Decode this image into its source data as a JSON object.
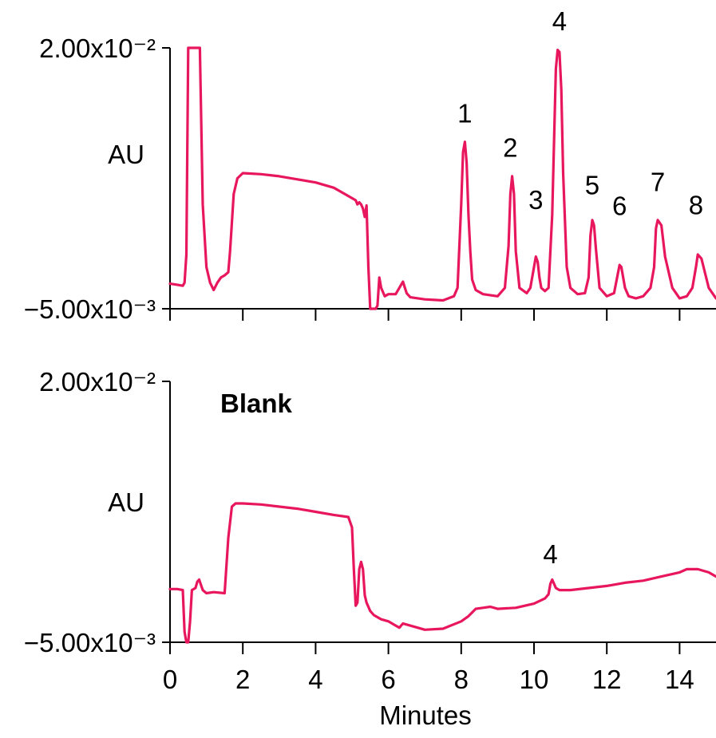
{
  "chart_data": [
    {
      "type": "line",
      "title": "",
      "xlabel": "",
      "ylabel": "AU",
      "xlim": [
        0,
        15
      ],
      "ylim": [
        -0.005,
        0.02
      ],
      "y_tick_labels": {
        "bottom": "−5.00x10⁻³",
        "top": "2.00x10⁻²"
      },
      "x_ticks": [
        0,
        2,
        4,
        6,
        8,
        10,
        12,
        14
      ],
      "x_tick_labels_shown": false,
      "color": "#e8175d",
      "series": [
        {
          "x": [
            0,
            0.2,
            0.35,
            0.4,
            0.45,
            0.5,
            0.6,
            0.8,
            0.82,
            0.9,
            1.0,
            1.1,
            1.2,
            1.3,
            1.4,
            1.5,
            1.6,
            1.65,
            1.75,
            1.85,
            2.0,
            2.5,
            3.0,
            3.5,
            4.0,
            4.5,
            4.8,
            5.0,
            5.1,
            5.15,
            5.2,
            5.25,
            5.3,
            5.35,
            5.4,
            5.45,
            5.5,
            5.55,
            5.6,
            5.65,
            5.7,
            5.75,
            5.8,
            5.9,
            6.0,
            6.2,
            6.3,
            6.4,
            6.5,
            6.6,
            7.0,
            7.5,
            7.8,
            7.9,
            8.0,
            8.05,
            8.1,
            8.15,
            8.2,
            8.25,
            8.3,
            8.4,
            8.6,
            9.0,
            9.2,
            9.3,
            9.35,
            9.4,
            9.45,
            9.5,
            9.6,
            9.8,
            9.9,
            10.0,
            10.05,
            10.1,
            10.15,
            10.2,
            10.3,
            10.4,
            10.5,
            10.6,
            10.65,
            10.7,
            10.75,
            10.8,
            10.9,
            11.0,
            11.2,
            11.4,
            11.5,
            11.55,
            11.6,
            11.65,
            11.7,
            11.8,
            12.0,
            12.2,
            12.3,
            12.35,
            12.4,
            12.5,
            12.6,
            12.8,
            13.0,
            13.2,
            13.3,
            13.35,
            13.4,
            13.5,
            13.6,
            13.8,
            14.0,
            14.2,
            14.35,
            14.45,
            14.5,
            14.6,
            14.8,
            15.0
          ],
          "y": [
            -0.0026,
            -0.0027,
            -0.0028,
            -0.0025,
            0.0002,
            0.02,
            0.02,
            0.02,
            0.02,
            0.005,
            -0.001,
            -0.0025,
            -0.0032,
            -0.0025,
            -0.002,
            -0.0018,
            -0.0015,
            0.0005,
            0.006,
            0.0075,
            0.008,
            0.0079,
            0.0077,
            0.0074,
            0.0071,
            0.0066,
            0.006,
            0.0056,
            0.0054,
            0.005,
            0.0052,
            0.005,
            0.0046,
            0.0038,
            0.0049,
            -0.001,
            -0.006,
            -0.005,
            -0.0065,
            -0.0052,
            -0.0047,
            -0.002,
            -0.003,
            -0.0038,
            -0.0036,
            -0.0036,
            -0.003,
            -0.0024,
            -0.0035,
            -0.0039,
            -0.0041,
            -0.0042,
            -0.0038,
            -0.003,
            0.005,
            0.01,
            0.011,
            0.009,
            0.004,
            0.0005,
            -0.0022,
            -0.0032,
            -0.0036,
            -0.0038,
            -0.003,
            0.001,
            0.006,
            0.0077,
            0.006,
            0.0005,
            -0.003,
            -0.0035,
            -0.003,
            -0.001,
            0.0,
            -0.0005,
            -0.002,
            -0.003,
            -0.0033,
            -0.003,
            0.004,
            0.018,
            0.0198,
            0.0196,
            0.016,
            0.008,
            -0.001,
            -0.003,
            -0.0036,
            -0.0035,
            -0.002,
            0.002,
            0.0035,
            0.003,
            0.0008,
            -0.003,
            -0.0038,
            -0.0035,
            -0.0017,
            -0.0008,
            -0.001,
            -0.003,
            -0.0038,
            -0.004,
            -0.0038,
            -0.003,
            -0.001,
            0.0027,
            0.0035,
            0.003,
            0.0,
            -0.003,
            -0.004,
            -0.0038,
            -0.003,
            -0.001,
            0.0002,
            -0.0002,
            -0.003,
            -0.004
          ]
        }
      ],
      "annotations": [
        {
          "text": "1",
          "x": 8.1,
          "y": 0.0121
        },
        {
          "text": "2",
          "x": 9.35,
          "y": 0.0088
        },
        {
          "text": "3",
          "x": 10.05,
          "y": 0.0038
        },
        {
          "text": "4",
          "x": 10.7,
          "y": 0.0209
        },
        {
          "text": "5",
          "x": 11.6,
          "y": 0.0052
        },
        {
          "text": "6",
          "x": 12.35,
          "y": 0.0032
        },
        {
          "text": "7",
          "x": 13.4,
          "y": 0.0055
        },
        {
          "text": "8",
          "x": 14.45,
          "y": 0.0033
        }
      ]
    },
    {
      "type": "line",
      "title": "Blank",
      "xlabel": "Minutes",
      "ylabel": "AU",
      "xlim": [
        0,
        15
      ],
      "ylim": [
        -0.005,
        0.02
      ],
      "y_tick_labels": {
        "bottom": "−5.00x10⁻³",
        "top": "2.00x10⁻²"
      },
      "x_ticks": [
        0,
        2,
        4,
        6,
        8,
        10,
        12,
        14
      ],
      "x_tick_labels": [
        "0",
        "2",
        "4",
        "6",
        "8",
        "10",
        "12",
        "14"
      ],
      "color": "#e8175d",
      "series": [
        {
          "x": [
            0,
            0.2,
            0.35,
            0.4,
            0.45,
            0.5,
            0.55,
            0.6,
            0.7,
            0.75,
            0.8,
            0.9,
            1.0,
            1.2,
            1.5,
            1.6,
            1.7,
            1.8,
            2.0,
            2.5,
            3.0,
            3.5,
            4.0,
            4.5,
            4.9,
            5.0,
            5.05,
            5.1,
            5.15,
            5.2,
            5.25,
            5.3,
            5.35,
            5.4,
            5.5,
            5.6,
            5.8,
            6.0,
            6.2,
            6.3,
            6.4,
            6.5,
            6.8,
            7.0,
            7.5,
            8.0,
            8.2,
            8.4,
            8.6,
            8.8,
            9.0,
            9.5,
            10.0,
            10.3,
            10.4,
            10.45,
            10.5,
            10.6,
            10.7,
            11.0,
            11.5,
            12.0,
            12.5,
            13.0,
            13.5,
            14.0,
            14.2,
            14.5,
            14.8,
            15.0
          ],
          "y": [
            0.0001,
            0.0001,
            0.0,
            -0.004,
            -0.005,
            -0.005,
            -0.003,
            0.0,
            0.0002,
            0.0008,
            0.001,
            0.0,
            -0.0003,
            -0.0002,
            -0.0003,
            0.005,
            0.008,
            0.0083,
            0.0083,
            0.0082,
            0.008,
            0.0078,
            0.0075,
            0.0072,
            0.007,
            0.006,
            0.002,
            -0.0015,
            -0.0012,
            0.002,
            0.0027,
            0.002,
            -0.0005,
            -0.0012,
            -0.002,
            -0.0024,
            -0.0028,
            -0.003,
            -0.0034,
            -0.0036,
            -0.0032,
            -0.0033,
            -0.0036,
            -0.0038,
            -0.0037,
            -0.003,
            -0.0025,
            -0.0018,
            -0.0017,
            -0.0016,
            -0.0018,
            -0.0017,
            -0.0013,
            -0.0008,
            -0.0004,
            0.0006,
            0.001,
            0.0002,
            0.0,
            0.0,
            0.0002,
            0.0004,
            0.0007,
            0.0009,
            0.0013,
            0.0017,
            0.002,
            0.002,
            0.0017,
            0.0013
          ]
        }
      ],
      "annotations": [
        {
          "text": "4",
          "x": 10.45,
          "y": 0.0018
        }
      ]
    }
  ]
}
